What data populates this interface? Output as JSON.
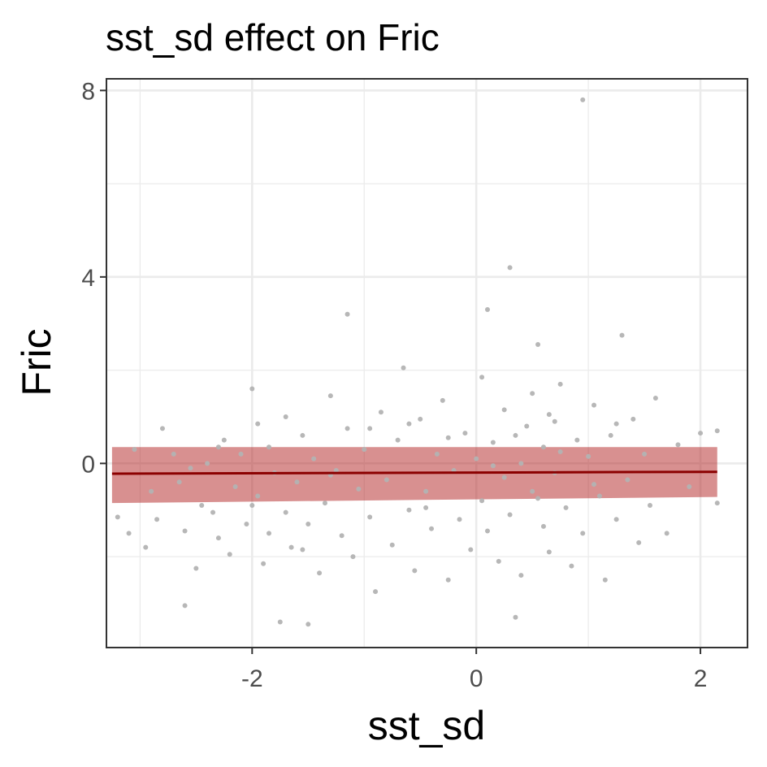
{
  "chart_data": {
    "type": "scatter",
    "title": "sst_sd effect on Fric",
    "xlabel": "sst_sd",
    "ylabel": "Fric",
    "xlim": [
      -3.3,
      2.42
    ],
    "ylim": [
      -3.95,
      8.25
    ],
    "x_ticks": [
      {
        "value": -2,
        "label": "-2"
      },
      {
        "value": 0,
        "label": "0"
      },
      {
        "value": 2,
        "label": "2"
      }
    ],
    "y_ticks": [
      {
        "value": 0,
        "label": "0"
      },
      {
        "value": 4,
        "label": "4"
      },
      {
        "value": 8,
        "label": "8"
      }
    ],
    "x_minor_ticks": [
      -3,
      -1,
      1
    ],
    "y_minor_ticks": [
      -2,
      2,
      6
    ],
    "grid": true,
    "colors": {
      "points": "#b3b3b3",
      "fit_line": "#8b0000",
      "ribbon": "#b22222",
      "grid": "#ebebeb",
      "panel_border": "#333333"
    },
    "fit": {
      "x": [
        -3.25,
        2.15
      ],
      "y": [
        -0.22,
        -0.18
      ],
      "ci_low": [
        -0.85,
        -0.72
      ],
      "ci_high": [
        0.35,
        0.35
      ]
    },
    "points": [
      [
        -3.2,
        -1.15
      ],
      [
        -3.1,
        -1.5
      ],
      [
        -3.05,
        0.3
      ],
      [
        -2.95,
        -1.8
      ],
      [
        -2.9,
        -0.6
      ],
      [
        -2.85,
        -1.2
      ],
      [
        -2.8,
        0.75
      ],
      [
        -2.7,
        0.2
      ],
      [
        -2.65,
        -0.4
      ],
      [
        -2.6,
        -1.45
      ],
      [
        -2.6,
        -3.05
      ],
      [
        -2.5,
        -2.25
      ],
      [
        -2.45,
        -0.9
      ],
      [
        -2.4,
        0.0
      ],
      [
        -2.35,
        -1.05
      ],
      [
        -2.3,
        -1.6
      ],
      [
        -2.25,
        0.5
      ],
      [
        -2.2,
        -1.95
      ],
      [
        -2.15,
        -0.5
      ],
      [
        -2.1,
        0.2
      ],
      [
        -2.05,
        -1.3
      ],
      [
        -2.0,
        1.6
      ],
      [
        -1.95,
        0.85
      ],
      [
        -1.95,
        -0.7
      ],
      [
        -1.9,
        -2.15
      ],
      [
        -1.85,
        -1.5
      ],
      [
        -1.85,
        0.35
      ],
      [
        -1.8,
        -0.2
      ],
      [
        -1.75,
        -3.4
      ],
      [
        -1.7,
        -1.05
      ],
      [
        -1.7,
        1.0
      ],
      [
        -1.65,
        -1.8
      ],
      [
        -1.6,
        -0.4
      ],
      [
        -1.55,
        0.6
      ],
      [
        -1.5,
        -3.45
      ],
      [
        -1.5,
        -1.3
      ],
      [
        -1.45,
        0.1
      ],
      [
        -1.4,
        -2.35
      ],
      [
        -1.35,
        -0.85
      ],
      [
        -1.3,
        1.45
      ],
      [
        -1.25,
        -0.15
      ],
      [
        -1.2,
        -1.55
      ],
      [
        -1.15,
        0.75
      ],
      [
        -1.15,
        3.2
      ],
      [
        -1.1,
        -2.0
      ],
      [
        -1.05,
        -0.55
      ],
      [
        -1.0,
        0.3
      ],
      [
        -0.95,
        -1.15
      ],
      [
        -0.9,
        -2.75
      ],
      [
        -0.85,
        1.1
      ],
      [
        -0.8,
        -0.35
      ],
      [
        -0.75,
        -1.75
      ],
      [
        -0.7,
        0.5
      ],
      [
        -0.65,
        2.05
      ],
      [
        -0.6,
        -1.0
      ],
      [
        -0.55,
        -2.3
      ],
      [
        -0.5,
        0.95
      ],
      [
        -0.45,
        -0.6
      ],
      [
        -0.4,
        -1.4
      ],
      [
        -0.35,
        0.2
      ],
      [
        -0.3,
        1.35
      ],
      [
        -0.25,
        -2.5
      ],
      [
        -0.2,
        -0.15
      ],
      [
        -0.15,
        -1.2
      ],
      [
        -0.1,
        0.65
      ],
      [
        -0.05,
        -1.85
      ],
      [
        0.0,
        0.1
      ],
      [
        0.05,
        1.85
      ],
      [
        0.05,
        -0.8
      ],
      [
        0.1,
        3.3
      ],
      [
        0.1,
        -1.45
      ],
      [
        0.15,
        0.45
      ],
      [
        0.2,
        -2.1
      ],
      [
        0.25,
        -0.3
      ],
      [
        0.25,
        1.15
      ],
      [
        0.3,
        4.2
      ],
      [
        0.3,
        -1.1
      ],
      [
        0.35,
        -3.3
      ],
      [
        0.4,
        0.0
      ],
      [
        0.4,
        -2.4
      ],
      [
        0.45,
        0.8
      ],
      [
        0.5,
        -0.6
      ],
      [
        0.5,
        1.5
      ],
      [
        0.55,
        2.55
      ],
      [
        0.6,
        -1.35
      ],
      [
        0.6,
        0.35
      ],
      [
        0.65,
        -1.9
      ],
      [
        0.7,
        0.9
      ],
      [
        0.7,
        -0.2
      ],
      [
        0.75,
        1.7
      ],
      [
        0.8,
        -0.95
      ],
      [
        0.85,
        -2.2
      ],
      [
        0.9,
        0.5
      ],
      [
        0.95,
        7.8
      ],
      [
        0.95,
        -1.5
      ],
      [
        1.0,
        0.15
      ],
      [
        1.05,
        1.25
      ],
      [
        1.1,
        -0.7
      ],
      [
        1.15,
        -2.5
      ],
      [
        1.2,
        0.6
      ],
      [
        1.25,
        -1.2
      ],
      [
        1.3,
        2.75
      ],
      [
        1.35,
        -0.35
      ],
      [
        1.4,
        0.95
      ],
      [
        1.45,
        -1.7
      ],
      [
        1.5,
        0.2
      ],
      [
        1.55,
        -0.9
      ],
      [
        1.6,
        1.4
      ],
      [
        1.7,
        -1.5
      ],
      [
        1.8,
        0.4
      ],
      [
        1.9,
        -0.5
      ],
      [
        2.0,
        0.65
      ],
      [
        2.15,
        -0.85
      ],
      [
        2.15,
        0.7
      ],
      [
        -2.55,
        -0.1
      ],
      [
        -2.0,
        -0.9
      ],
      [
        -1.3,
        -0.25
      ],
      [
        -0.6,
        0.85
      ],
      [
        0.15,
        -0.05
      ],
      [
        0.75,
        0.25
      ],
      [
        1.05,
        -0.45
      ],
      [
        -0.25,
        0.55
      ],
      [
        -1.55,
        -1.85
      ],
      [
        -0.95,
        0.75
      ],
      [
        0.55,
        -0.75
      ],
      [
        1.25,
        0.85
      ],
      [
        -2.3,
        0.35
      ],
      [
        0.65,
        1.05
      ],
      [
        -0.45,
        -0.95
      ],
      [
        0.35,
        0.6
      ]
    ]
  }
}
